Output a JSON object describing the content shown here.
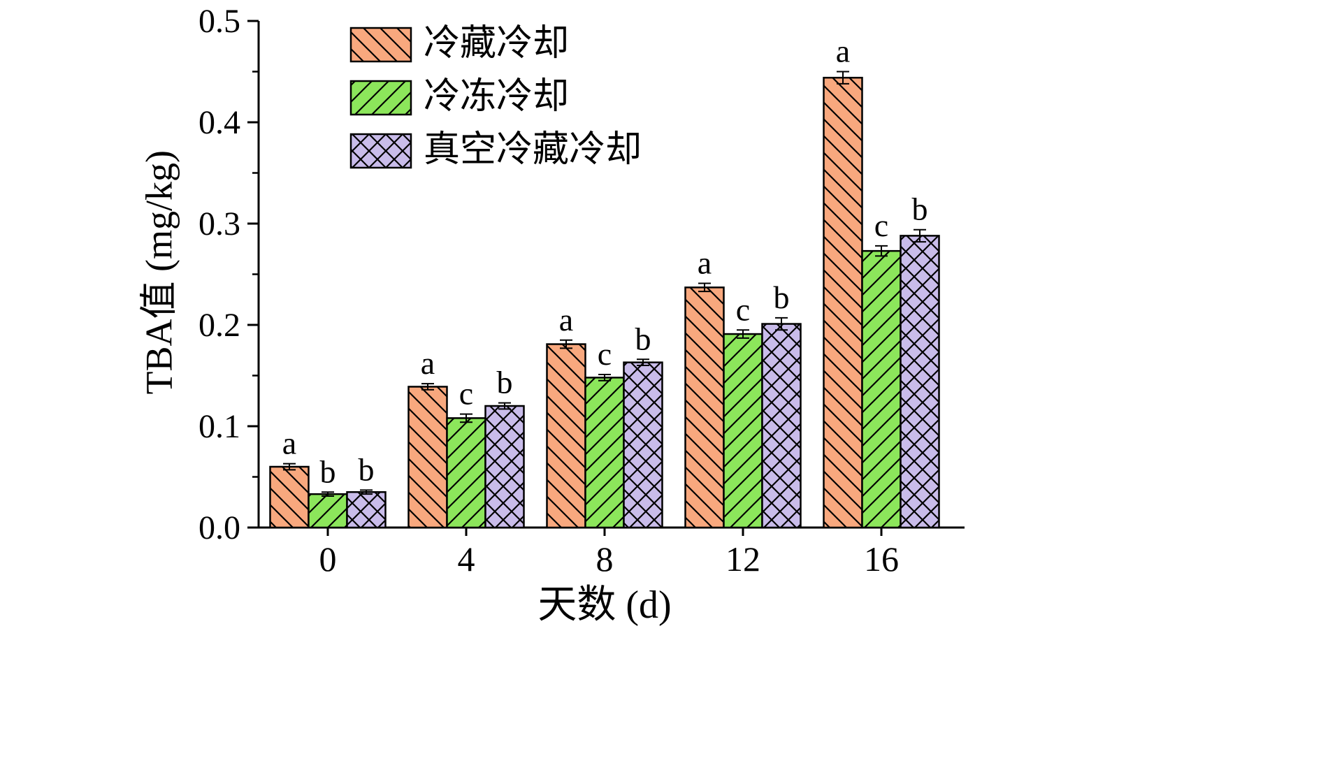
{
  "figure": {
    "background": "#ffffff"
  },
  "chart_data": {
    "type": "bar",
    "title": "",
    "xlabel": "天数 (d)",
    "ylabel": "TBA值 (mg/kg)",
    "categories": [
      "0",
      "4",
      "8",
      "12",
      "16"
    ],
    "ylim": [
      0,
      0.5
    ],
    "y_major_ticks": [
      0,
      0.1,
      0.2,
      0.3,
      0.4,
      0.5
    ],
    "y_tick_labels": [
      "0.0",
      "0.1",
      "0.2",
      "0.3",
      "0.4",
      "0.5"
    ],
    "y_minor_step": 0.05,
    "grid": false,
    "axis_color": "#000000",
    "legend": {
      "position": "top-left-inside",
      "entries": [
        "冷藏冷却",
        "冷冻冷却",
        "真空冷藏冷却"
      ]
    },
    "series": [
      {
        "name": "冷藏冷却",
        "color": "#F8A87E",
        "hatch": "backslash",
        "values": [
          0.06,
          0.139,
          0.181,
          0.237,
          0.444
        ],
        "errors": [
          0.003,
          0.003,
          0.004,
          0.004,
          0.006
        ],
        "letters": [
          "a",
          "a",
          "a",
          "a",
          "a"
        ]
      },
      {
        "name": "冷冻冷却",
        "color": "#8CE65B",
        "hatch": "slash",
        "values": [
          0.033,
          0.108,
          0.148,
          0.191,
          0.273
        ],
        "errors": [
          0.002,
          0.004,
          0.003,
          0.004,
          0.005
        ],
        "letters": [
          "b",
          "c",
          "c",
          "c",
          "c"
        ]
      },
      {
        "name": "真空冷藏冷却",
        "color": "#C9BCEA",
        "hatch": "cross",
        "values": [
          0.035,
          0.12,
          0.163,
          0.201,
          0.288
        ],
        "errors": [
          0.002,
          0.003,
          0.003,
          0.006,
          0.006
        ],
        "letters": [
          "b",
          "b",
          "b",
          "b",
          "b"
        ]
      }
    ]
  }
}
